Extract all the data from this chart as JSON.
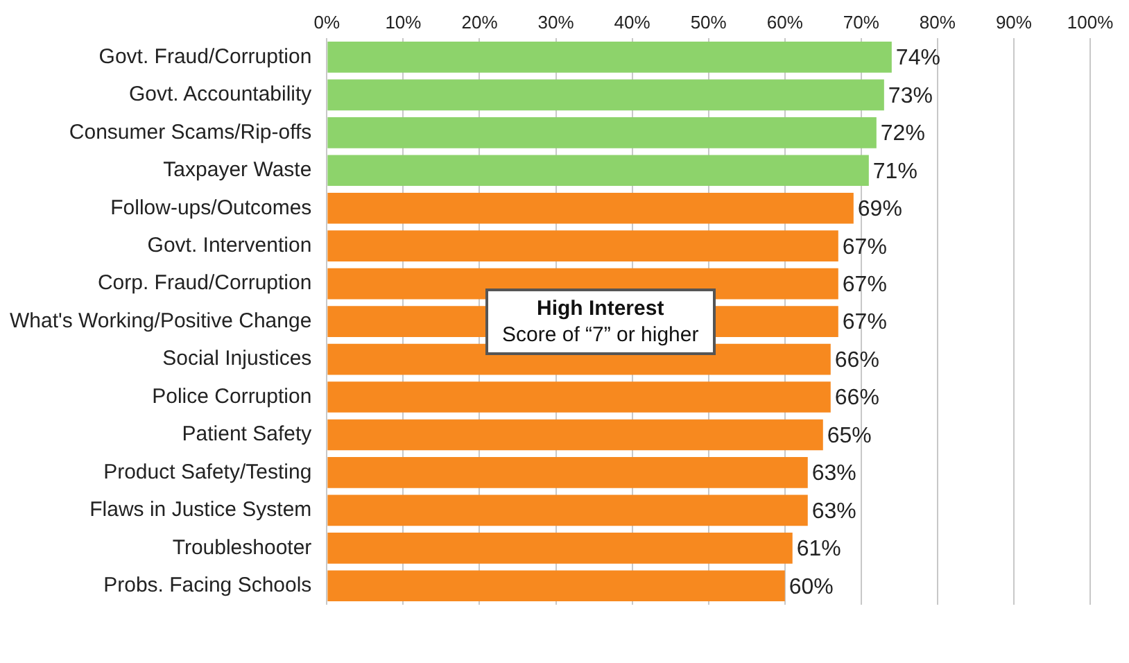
{
  "chart_data": {
    "type": "bar",
    "orientation": "horizontal",
    "categories": [
      "Govt. Fraud/Corruption",
      "Govt. Accountability",
      "Consumer Scams/Rip-offs",
      "Taxpayer Waste",
      "Follow-ups/Outcomes",
      "Govt. Intervention",
      "Corp. Fraud/Corruption",
      "What's Working/Positive Change",
      "Social Injustices",
      "Police Corruption",
      "Patient Safety",
      "Product Safety/Testing",
      "Flaws in Justice System",
      "Troubleshooter",
      "Probs. Facing Schools"
    ],
    "values": [
      74,
      73,
      72,
      71,
      69,
      67,
      67,
      67,
      66,
      66,
      65,
      63,
      63,
      61,
      60
    ],
    "colors": [
      "#8dd36b",
      "#8dd36b",
      "#8dd36b",
      "#8dd36b",
      "#f7891f",
      "#f7891f",
      "#f7891f",
      "#f7891f",
      "#f7891f",
      "#f7891f",
      "#f7891f",
      "#f7891f",
      "#f7891f",
      "#f7891f",
      "#f7891f"
    ],
    "value_labels": [
      "74%",
      "73%",
      "72%",
      "71%",
      "69%",
      "67%",
      "67%",
      "67%",
      "66%",
      "66%",
      "65%",
      "63%",
      "63%",
      "61%",
      "60%"
    ],
    "xlim": [
      0,
      100
    ],
    "xticks": [
      {
        "value": 0,
        "label": "0%"
      },
      {
        "value": 10,
        "label": "10%"
      },
      {
        "value": 20,
        "label": "20%"
      },
      {
        "value": 30,
        "label": "30%"
      },
      {
        "value": 40,
        "label": "40%"
      },
      {
        "value": 50,
        "label": "50%"
      },
      {
        "value": 60,
        "label": "60%"
      },
      {
        "value": 70,
        "label": "70%"
      },
      {
        "value": 80,
        "label": "80%"
      },
      {
        "value": 90,
        "label": "90%"
      },
      {
        "value": 100,
        "label": "100%"
      }
    ],
    "grid": "x",
    "annotations": [
      "High Interest",
      "Score of “7” or higher"
    ]
  }
}
